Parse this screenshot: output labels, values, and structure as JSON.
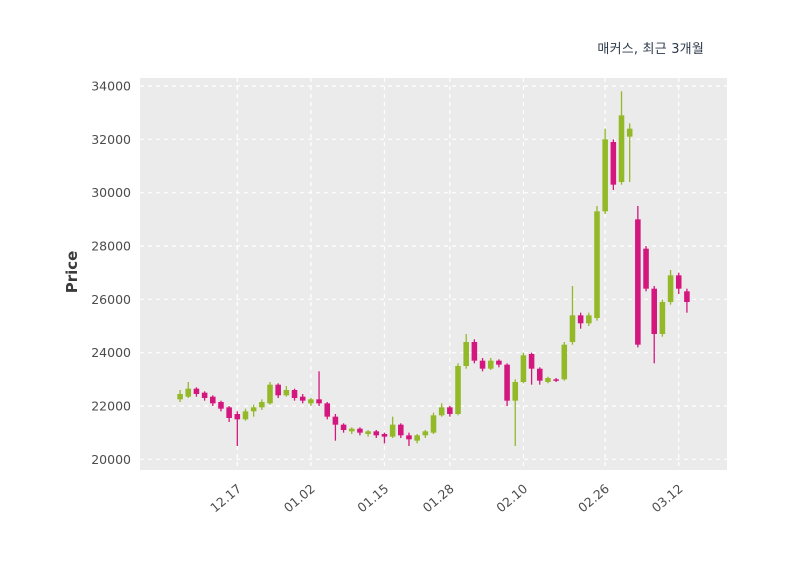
{
  "colors": {
    "up": "#93b928",
    "down": "#d4177e",
    "panel_bg": "#ebebeb",
    "grid": "#ffffff",
    "tick_text": "#4c4c4c",
    "title_text": "#2d3a4a"
  },
  "chart_data": {
    "type": "candlestick",
    "title": "매커스, 최근 3개월",
    "ylabel": "Price",
    "y_domain": [
      19600,
      34300
    ],
    "y_ticks": [
      20000,
      22000,
      24000,
      26000,
      28000,
      30000,
      32000,
      34000
    ],
    "x_tick_labels": [
      "12.17",
      "01.02",
      "01.15",
      "01.28",
      "02.10",
      "02.26",
      "03.12"
    ],
    "x_tick_indices": [
      7,
      16,
      25,
      33,
      42,
      52,
      61
    ],
    "grid": "dashed-white-on-gray",
    "legend": "none",
    "candles": [
      [
        22250,
        22600,
        22150,
        22450
      ],
      [
        22350,
        22900,
        22300,
        22650
      ],
      [
        22650,
        22700,
        22350,
        22450
      ],
      [
        22500,
        22550,
        22200,
        22300
      ],
      [
        22350,
        22400,
        22000,
        22100
      ],
      [
        22150,
        22200,
        21800,
        21900
      ],
      [
        21950,
        22000,
        21400,
        21550
      ],
      [
        21700,
        21800,
        20500,
        21500
      ],
      [
        21500,
        21900,
        21450,
        21800
      ],
      [
        21800,
        22050,
        21600,
        21950
      ],
      [
        21950,
        22250,
        21850,
        22150
      ],
      [
        22100,
        22900,
        22050,
        22800
      ],
      [
        22800,
        22850,
        22300,
        22400
      ],
      [
        22400,
        22750,
        22350,
        22600
      ],
      [
        22600,
        22650,
        22200,
        22300
      ],
      [
        22350,
        22450,
        22100,
        22200
      ],
      [
        22100,
        22300,
        22000,
        22250
      ],
      [
        22250,
        23300,
        22000,
        22100
      ],
      [
        22100,
        22150,
        21500,
        21600
      ],
      [
        21600,
        21700,
        20700,
        21300
      ],
      [
        21300,
        21350,
        21000,
        21100
      ],
      [
        21050,
        21200,
        20950,
        21150
      ],
      [
        21150,
        21200,
        20900,
        21000
      ],
      [
        20950,
        21100,
        20850,
        21050
      ],
      [
        21050,
        21100,
        20800,
        20900
      ],
      [
        20950,
        21000,
        20600,
        20850
      ],
      [
        20850,
        21600,
        20800,
        21300
      ],
      [
        21300,
        21350,
        20800,
        20900
      ],
      [
        20900,
        21000,
        20500,
        20750
      ],
      [
        20700,
        20950,
        20600,
        20900
      ],
      [
        20900,
        21100,
        20800,
        21050
      ],
      [
        21000,
        21750,
        20950,
        21650
      ],
      [
        21650,
        22100,
        21600,
        21950
      ],
      [
        21950,
        22000,
        21600,
        21700
      ],
      [
        21700,
        23600,
        21650,
        23500
      ],
      [
        23500,
        24700,
        23400,
        24400
      ],
      [
        24400,
        24500,
        23600,
        23700
      ],
      [
        23700,
        23800,
        23300,
        23400
      ],
      [
        23400,
        23800,
        23350,
        23700
      ],
      [
        23700,
        23750,
        23450,
        23550
      ],
      [
        23550,
        23600,
        22000,
        22200
      ],
      [
        22200,
        23000,
        20500,
        22900
      ],
      [
        22900,
        24000,
        22850,
        23900
      ],
      [
        23950,
        24000,
        22800,
        23400
      ],
      [
        23400,
        23450,
        22800,
        22950
      ],
      [
        22900,
        23100,
        22850,
        23050
      ],
      [
        23000,
        23050,
        22900,
        22950
      ],
      [
        23000,
        24400,
        22950,
        24300
      ],
      [
        24400,
        26500,
        24300,
        25400
      ],
      [
        25400,
        25500,
        24900,
        25100
      ],
      [
        25100,
        25500,
        25000,
        25400
      ],
      [
        25300,
        29500,
        25200,
        29300
      ],
      [
        29300,
        32400,
        29200,
        32000
      ],
      [
        31900,
        32000,
        30100,
        30300
      ],
      [
        30400,
        33800,
        30300,
        32900
      ],
      [
        32100,
        32600,
        30400,
        32400
      ],
      [
        29000,
        29500,
        24200,
        24300
      ],
      [
        27900,
        28000,
        26300,
        26400
      ],
      [
        26400,
        26500,
        23600,
        24700
      ],
      [
        24700,
        26000,
        24600,
        25900
      ],
      [
        25900,
        27100,
        25800,
        26900
      ],
      [
        26900,
        27000,
        26200,
        26400
      ],
      [
        26300,
        26400,
        25500,
        25900
      ]
    ]
  }
}
